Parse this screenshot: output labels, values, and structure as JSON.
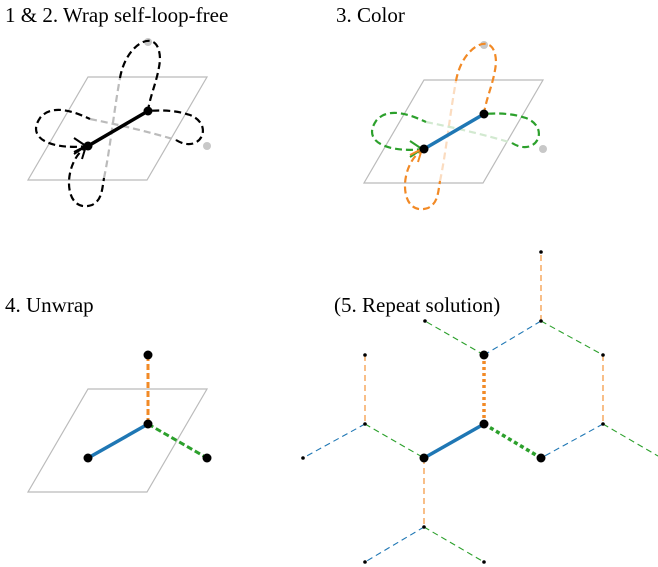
{
  "panels": [
    {
      "label": "1 & 2. Wrap self-loop-free"
    },
    {
      "label": "3. Color"
    },
    {
      "label": "4. Unwrap"
    },
    {
      "label": "(5. Repeat solution)"
    }
  ]
}
